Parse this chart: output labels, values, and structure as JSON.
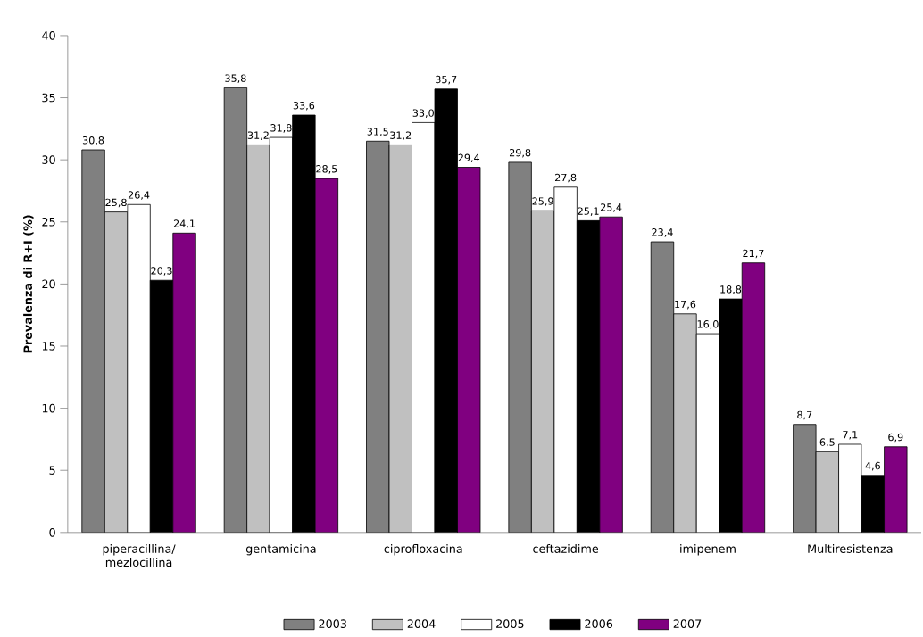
{
  "chart_data": {
    "type": "bar",
    "ylabel": "Prevalenza di R+I (%)",
    "categories": [
      "piperacillina/ mezlocillina",
      "gentamicina",
      "ciprofloxacina",
      "ceftazidime",
      "imipenem",
      "Multiresistenza"
    ],
    "series": [
      {
        "name": "2003",
        "color": "#808080",
        "values": [
          30.8,
          35.8,
          31.5,
          29.8,
          23.4,
          8.7
        ],
        "value_labels": [
          "30,8",
          "35,8",
          "31,5",
          "29,8",
          "23,4",
          "8,7"
        ]
      },
      {
        "name": "2004",
        "color": "#c0c0c0",
        "values": [
          25.8,
          31.2,
          31.2,
          25.9,
          17.6,
          6.5
        ],
        "value_labels": [
          "25,8",
          "31,2",
          "31,2",
          "25,9",
          "17,6",
          "6,5"
        ]
      },
      {
        "name": "2005",
        "color": "#ffffff",
        "values": [
          26.4,
          31.8,
          33.0,
          27.8,
          16.0,
          7.1
        ],
        "value_labels": [
          "26,4",
          "31,8",
          "33,0",
          "27,8",
          "16,0",
          "7,1"
        ]
      },
      {
        "name": "2006",
        "color": "#000000",
        "values": [
          20.3,
          33.6,
          35.7,
          25.1,
          18.8,
          4.6
        ],
        "value_labels": [
          "20,3",
          "33,6",
          "35,7",
          "25,1",
          "18,8",
          "4,6"
        ]
      },
      {
        "name": "2007",
        "color": "#800080",
        "values": [
          24.1,
          28.5,
          29.4,
          25.4,
          21.7,
          6.9
        ],
        "value_labels": [
          "24,1",
          "28,5",
          "29,4",
          "25,4",
          "21,7",
          "6,9"
        ]
      }
    ],
    "ylim": [
      0,
      40
    ],
    "yticks": [
      0,
      5,
      10,
      15,
      20,
      25,
      30,
      35,
      40
    ],
    "grid": false,
    "legend": "bottom"
  }
}
